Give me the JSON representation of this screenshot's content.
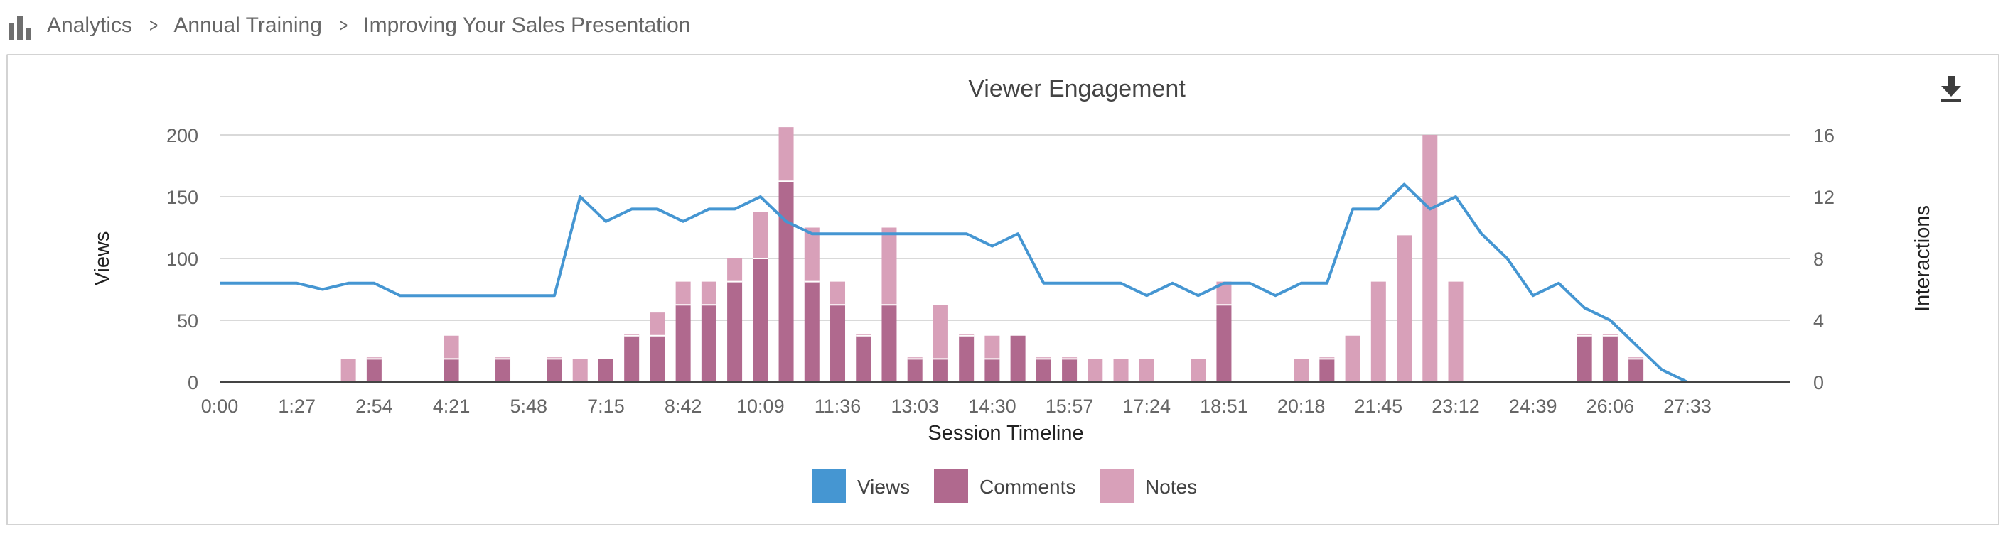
{
  "breadcrumb": {
    "icon": "bar-chart-icon",
    "items": [
      "Analytics",
      "Annual Training",
      "Improving Your Sales Presentation"
    ]
  },
  "toolbar": {
    "download_icon": "download-icon"
  },
  "colors": {
    "views": "#4596d2",
    "comments": "#b0698e",
    "notes": "#d8a0b9",
    "grid": "#d9d9d9",
    "axis": "#444444"
  },
  "chart_data": {
    "type": "bar",
    "title": "Viewer Engagement",
    "xlabel": "Session Timeline",
    "ylabel": "Views",
    "y2label": "Interactions",
    "ylim": [
      0,
      200
    ],
    "y2lim": [
      0,
      16
    ],
    "yticks": [
      "0",
      "50",
      "100",
      "150",
      "200"
    ],
    "y2ticks": [
      "0",
      "4",
      "8",
      "12",
      "16"
    ],
    "grid": true,
    "legend_position": "bottom",
    "x_tick_labels": [
      "0:00",
      "1:27",
      "2:54",
      "4:21",
      "5:48",
      "7:15",
      "8:42",
      "10:09",
      "11:36",
      "13:03",
      "14:30",
      "15:57",
      "17:24",
      "18:51",
      "20:18",
      "21:45",
      "23:12",
      "24:39",
      "26:06",
      "27:33"
    ],
    "series": [
      {
        "name": "Views",
        "type": "line",
        "axis": "left",
        "values": [
          80,
          80,
          80,
          80,
          75,
          80,
          80,
          70,
          70,
          70,
          70,
          70,
          70,
          70,
          150,
          130,
          140,
          140,
          130,
          140,
          140,
          150,
          130,
          120,
          120,
          120,
          120,
          120,
          120,
          120,
          110,
          120,
          80,
          80,
          80,
          80,
          70,
          80,
          70,
          80,
          80,
          70,
          80,
          80,
          140,
          140,
          160,
          140,
          150,
          120,
          100,
          70,
          80,
          60,
          50,
          30,
          10,
          0,
          0,
          0,
          0,
          0
        ]
      },
      {
        "name": "Comments",
        "type": "stacked-bar",
        "axis": "right",
        "values": [
          0,
          0,
          0,
          0,
          0,
          0,
          1.5,
          0,
          0,
          1.5,
          0,
          1.5,
          0,
          1.5,
          0,
          1.5,
          3,
          3,
          5,
          5,
          6.5,
          8,
          13,
          6.5,
          5,
          3,
          5,
          1.5,
          1.5,
          3,
          1.5,
          3,
          1.5,
          1.5,
          0,
          0,
          0,
          0,
          0,
          5,
          0,
          0,
          0,
          1.5,
          0,
          0,
          0,
          0,
          0,
          0,
          0,
          0,
          0,
          3,
          3,
          1.5,
          0,
          0,
          0,
          0,
          0,
          0
        ]
      },
      {
        "name": "Notes",
        "type": "stacked-bar",
        "axis": "right",
        "values": [
          0,
          0,
          0,
          0,
          0,
          1.5,
          0.1,
          0,
          0,
          1.5,
          0,
          0.1,
          0,
          0.1,
          1.5,
          0,
          0.1,
          1.5,
          1.5,
          1.5,
          1.5,
          3,
          3.5,
          3.5,
          1.5,
          0.1,
          5,
          0.1,
          3.5,
          0.1,
          1.5,
          0,
          0.1,
          0.1,
          1.5,
          1.5,
          1.5,
          0,
          1.5,
          1.5,
          0,
          0,
          1.5,
          0.1,
          3,
          6.5,
          9.5,
          16,
          6.5,
          0,
          0,
          0,
          0,
          0.1,
          0.1,
          0.1,
          0,
          0,
          0,
          0,
          0,
          0
        ]
      }
    ]
  }
}
